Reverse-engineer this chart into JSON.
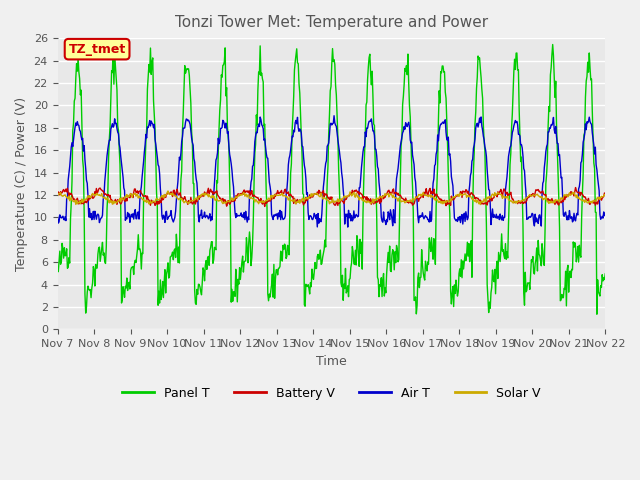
{
  "title": "Tonzi Tower Met: Temperature and Power",
  "xlabel": "Time",
  "ylabel": "Temperature (C) / Power (V)",
  "ylim": [
    0,
    26
  ],
  "yticks": [
    0,
    2,
    4,
    6,
    8,
    10,
    12,
    14,
    16,
    18,
    20,
    22,
    24,
    26
  ],
  "xtick_labels": [
    "Nov 7",
    "Nov 8",
    "Nov 9",
    "Nov 10",
    "Nov 11",
    "Nov 12",
    "Nov 13",
    "Nov 14",
    "Nov 15",
    "Nov 16",
    "Nov 17",
    "Nov 18",
    "Nov 19",
    "Nov 20",
    "Nov 21",
    "Nov 22"
  ],
  "legend_entries": [
    "Panel T",
    "Battery V",
    "Air T",
    "Solar V"
  ],
  "legend_colors": [
    "#00cc00",
    "#cc0000",
    "#0000cc",
    "#ccaa00"
  ],
  "annotation_text": "TZ_tmet",
  "annotation_color": "#cc0000",
  "annotation_bg": "#ffff99",
  "fig_bg": "#f0f0f0",
  "plot_bg": "#e8e8e8",
  "grid_color": "#ffffff",
  "panel_t_color": "#00cc00",
  "battery_v_color": "#cc0000",
  "air_t_color": "#0000cc",
  "solar_v_color": "#ccaa00",
  "n_days": 15,
  "points_per_day": 48
}
